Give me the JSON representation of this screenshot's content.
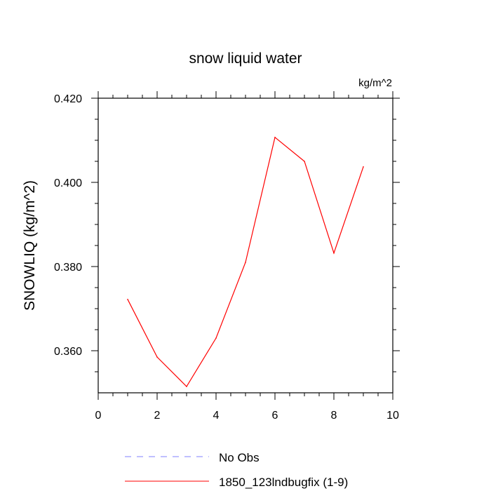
{
  "chart_data": {
    "type": "line",
    "title": "snow liquid water",
    "units_label": "kg/m^2",
    "ylabel": "SNOWLIQ  (kg/m^2)",
    "xlabel": "",
    "xlim": [
      0,
      10
    ],
    "ylim": [
      0.35,
      0.42
    ],
    "x_ticks": [
      0,
      2,
      4,
      6,
      8,
      10
    ],
    "x_tick_labels": [
      "0",
      "2",
      "4",
      "6",
      "8",
      "10"
    ],
    "y_ticks": [
      0.36,
      0.38,
      0.4,
      0.42
    ],
    "y_tick_labels": [
      "0.360",
      "0.380",
      "0.400",
      "0.420"
    ],
    "grid": false,
    "legend_placement": "bottom",
    "series": [
      {
        "name": "No Obs",
        "color": "#8080ff",
        "dash": "dashed",
        "x": [],
        "values": []
      },
      {
        "name": "1850_123lndbugfix (1-9)",
        "color": "#ff0000",
        "dash": "solid",
        "x": [
          1,
          2,
          3,
          4,
          5,
          6,
          7,
          8,
          9
        ],
        "values": [
          0.3722,
          0.3585,
          0.3515,
          0.363,
          0.381,
          0.4107,
          0.405,
          0.3832,
          0.4037
        ]
      }
    ]
  }
}
